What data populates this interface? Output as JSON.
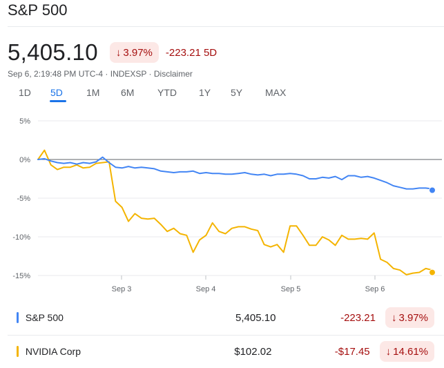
{
  "header": {
    "title": "S&P 500",
    "price": "5,405.10",
    "percent_change": "3.97%",
    "abs_change": "-223.21 5D",
    "meta": "Sep 6, 2:19:48 PM UTC-4 · INDEXSP · Disclaimer"
  },
  "tabs": [
    {
      "label": "1D"
    },
    {
      "label": "5D"
    },
    {
      "label": "1M"
    },
    {
      "label": "6M"
    },
    {
      "label": "YTD"
    },
    {
      "label": "1Y"
    },
    {
      "label": "5Y"
    },
    {
      "label": "MAX"
    }
  ],
  "active_tab": "5D",
  "colors": {
    "sp500": "#4285f4",
    "nvidia": "#f4b400",
    "negative": "#a50e0e",
    "negative_bg": "#fce8e6",
    "accent": "#1a73e8"
  },
  "chart_data": {
    "type": "line",
    "xlabel": "",
    "ylabel": "",
    "x_tick_labels": [
      "Sep 3",
      "Sep 4",
      "Sep 5",
      "Sep 6"
    ],
    "y_tick_labels": [
      "5%",
      "0%",
      "-5%",
      "-10%",
      "-15%"
    ],
    "ylim": [
      -15,
      5
    ],
    "y_unit": "% change",
    "grid": "horizontal",
    "series": [
      {
        "name": "S&P 500",
        "color": "#4285f4",
        "values": [
          0,
          0.1,
          -0.2,
          -0.4,
          -0.5,
          -0.4,
          -0.6,
          -0.4,
          -0.5,
          -0.3,
          0.3,
          -0.4,
          -1.0,
          -1.1,
          -0.9,
          -1.1,
          -1.0,
          -1.1,
          -1.2,
          -1.5,
          -1.6,
          -1.7,
          -1.6,
          -1.6,
          -1.5,
          -1.8,
          -1.7,
          -1.8,
          -1.8,
          -1.9,
          -1.9,
          -1.8,
          -1.7,
          -1.9,
          -2.0,
          -1.9,
          -2.1,
          -1.9,
          -1.9,
          -1.8,
          -1.9,
          -2.1,
          -2.5,
          -2.5,
          -2.3,
          -2.4,
          -2.2,
          -2.6,
          -2.1,
          -2.1,
          -2.3,
          -2.2,
          -2.4,
          -2.7,
          -3.0,
          -3.4,
          -3.6,
          -3.8,
          -3.8,
          -3.7,
          -3.7,
          -3.8
        ],
        "end_value": -3.97
      },
      {
        "name": "NVIDIA Corp",
        "color": "#f4b400",
        "values": [
          0,
          1.2,
          -0.7,
          -1.3,
          -1.0,
          -1.0,
          -0.7,
          -1.1,
          -1.0,
          -0.5,
          -0.4,
          -0.3,
          -5.4,
          -6.2,
          -8.0,
          -7.0,
          -7.6,
          -7.7,
          -7.6,
          -8.4,
          -9.3,
          -8.9,
          -9.6,
          -9.8,
          -12.0,
          -10.4,
          -9.8,
          -8.2,
          -9.3,
          -9.6,
          -8.9,
          -8.7,
          -8.7,
          -9.0,
          -9.2,
          -11.0,
          -11.3,
          -11.0,
          -12.0,
          -8.6,
          -8.6,
          -9.8,
          -11.1,
          -11.1,
          -10.0,
          -10.4,
          -11.1,
          -9.8,
          -10.3,
          -10.3,
          -10.2,
          -10.3,
          -9.5,
          -12.9,
          -13.3,
          -14.1,
          -14.3,
          -14.9,
          -14.7,
          -14.6,
          -14.1,
          -14.3
        ],
        "end_value": -14.61
      }
    ]
  },
  "legend": [
    {
      "name": "S&P 500",
      "color": "#4285f4",
      "price": "5,405.10",
      "change": "-223.21",
      "percent": "3.97%"
    },
    {
      "name": "NVIDIA Corp",
      "color": "#f4b400",
      "price": "$102.02",
      "change": "-$17.45",
      "percent": "14.61%"
    }
  ]
}
